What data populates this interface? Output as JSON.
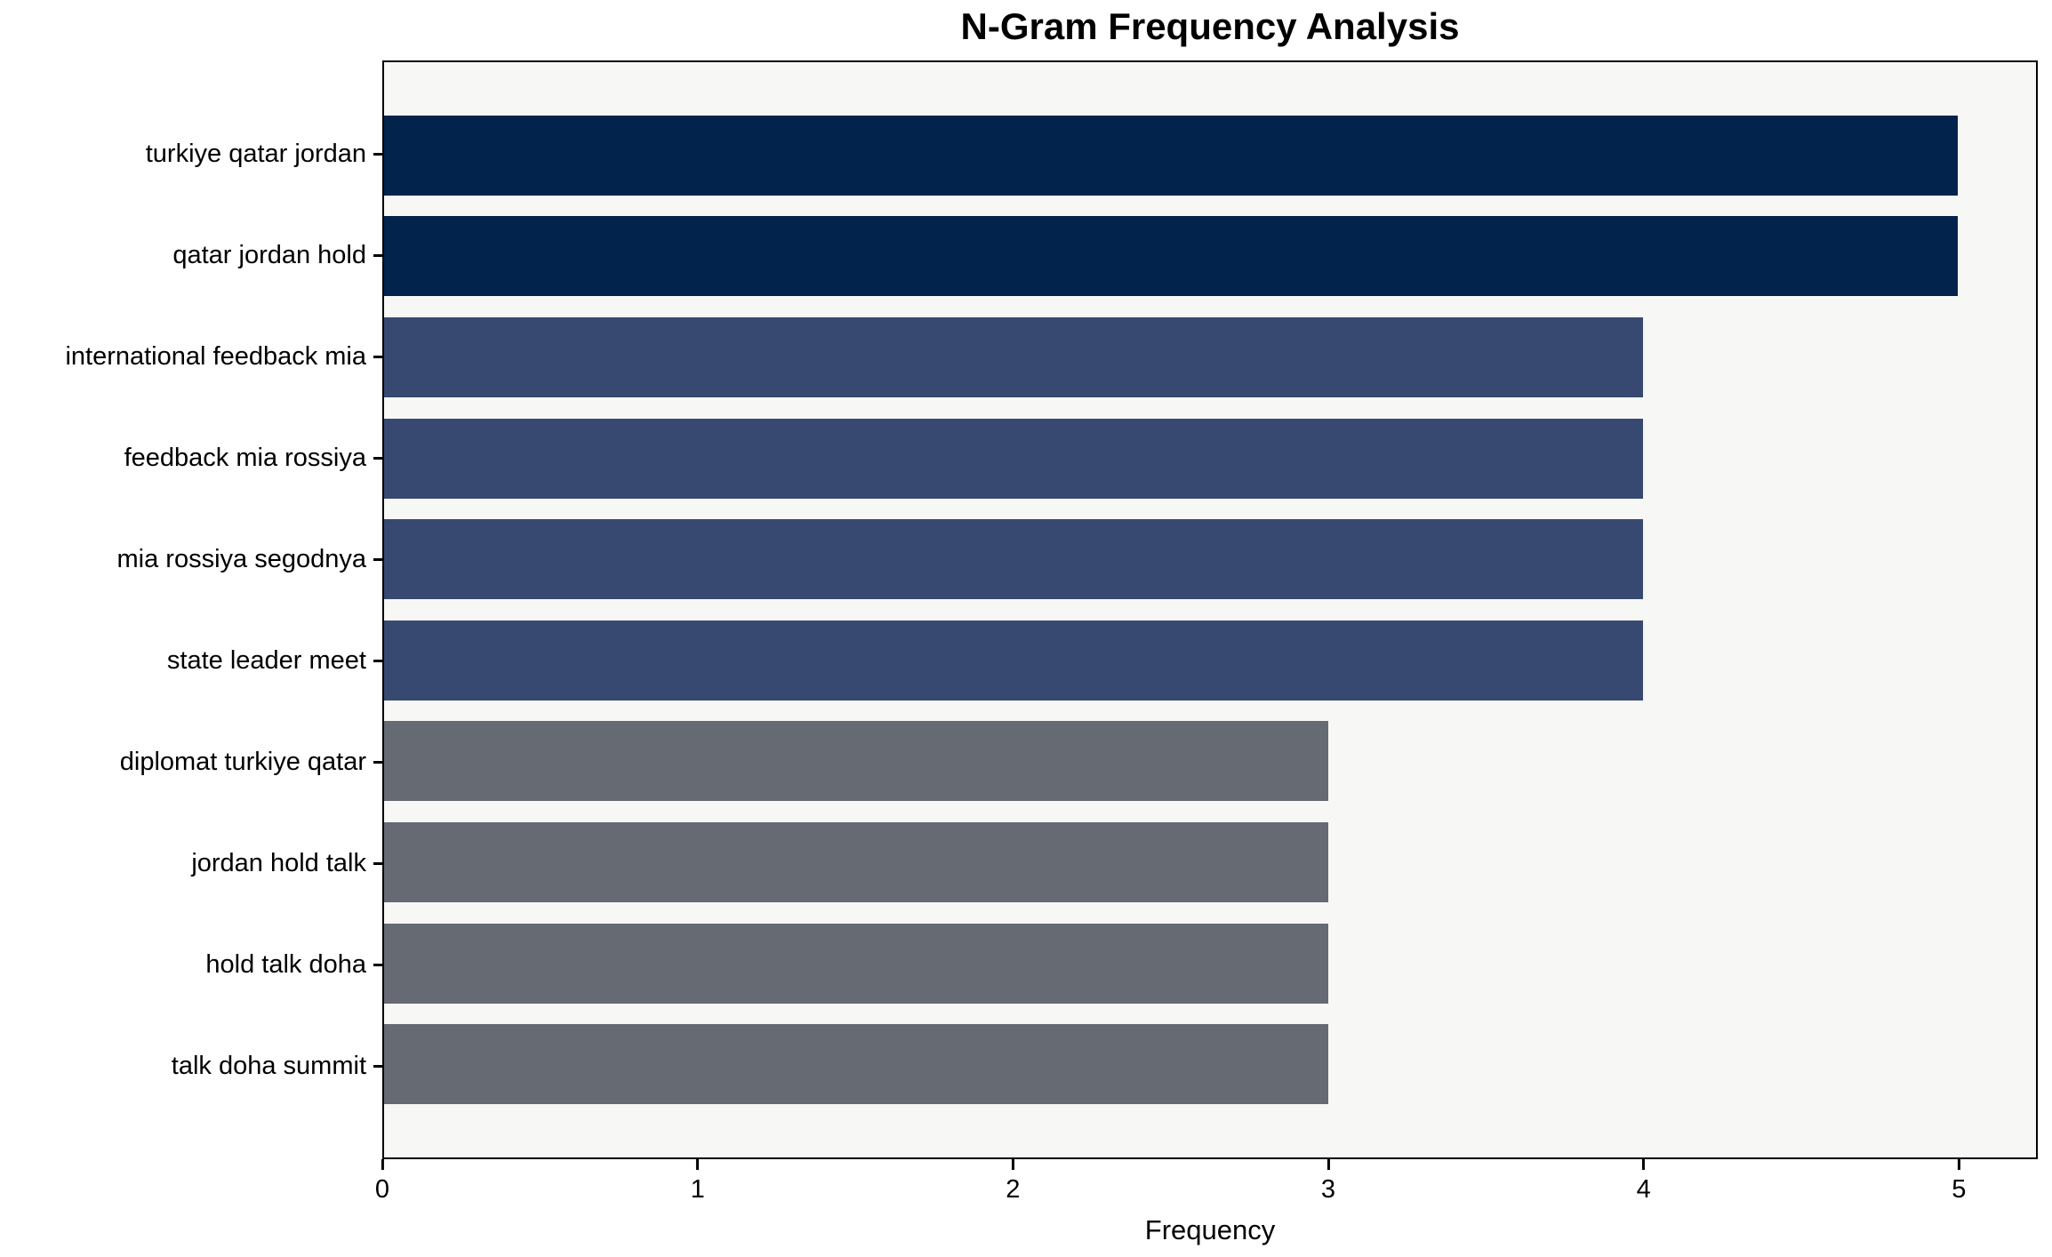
{
  "chart_data": {
    "type": "bar",
    "orientation": "horizontal",
    "title": "N-Gram Frequency Analysis",
    "xlabel": "Frequency",
    "ylabel": "",
    "categories": [
      "turkiye qatar jordan",
      "qatar jordan hold",
      "international feedback mia",
      "feedback mia rossiya",
      "mia rossiya segodnya",
      "state leader meet",
      "diplomat turkiye qatar",
      "jordan hold talk",
      "hold talk doha",
      "talk doha summit"
    ],
    "values": [
      5,
      5,
      4,
      4,
      4,
      4,
      3,
      3,
      3,
      3
    ],
    "bar_colors": [
      "#02234c",
      "#02234c",
      "#384971",
      "#384971",
      "#384971",
      "#384971",
      "#666a72",
      "#666a72",
      "#666a72",
      "#666a72"
    ],
    "x_ticks": [
      0,
      1,
      2,
      3,
      4,
      5
    ],
    "xlim": [
      0,
      5.25
    ],
    "grid": false,
    "legend": null,
    "colors": {
      "freq5": "#02234c",
      "freq4": "#384971",
      "freq3": "#666a72",
      "plot_background": "#f7f7f6",
      "page_background": "#ffffff",
      "axis": "#000000",
      "text": "#000000"
    }
  }
}
